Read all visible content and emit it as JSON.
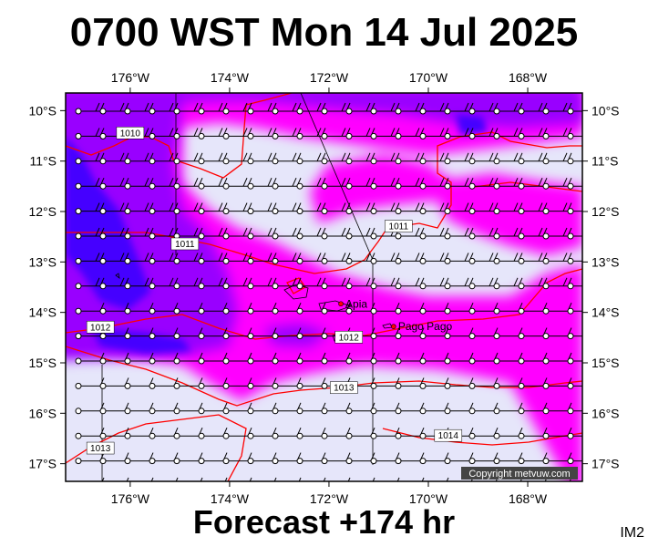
{
  "title": "0700 WST Mon 14 Jul 2025",
  "footer": "Forecast +174 hr",
  "corner_code": "IM2",
  "copyright": "Copyright metvuw.com",
  "axes": {
    "lon_ticks": [
      "176°W",
      "174°W",
      "172°W",
      "170°W",
      "168°W"
    ],
    "lat_ticks": [
      "10°S",
      "11°S",
      "12°S",
      "13°S",
      "14°S",
      "15°S",
      "16°S",
      "17°S"
    ]
  },
  "places": [
    {
      "name": "Apia",
      "lon": -171.76,
      "lat": -13.83
    },
    {
      "name": "Pago Pago",
      "lon": -170.7,
      "lat": -14.28
    }
  ],
  "isobar_labels": [
    {
      "text": "1010",
      "lon": -176.0,
      "lat": -10.45
    },
    {
      "text": "1011",
      "lon": -174.9,
      "lat": -12.65
    },
    {
      "text": "1011",
      "lon": -170.6,
      "lat": -12.3
    },
    {
      "text": "1012",
      "lon": -176.6,
      "lat": -14.3
    },
    {
      "text": "1012",
      "lon": -171.6,
      "lat": -14.5
    },
    {
      "text": "1013",
      "lon": -171.7,
      "lat": -15.5
    },
    {
      "text": "1013",
      "lon": -176.6,
      "lat": -16.7
    },
    {
      "text": "1014",
      "lon": -169.6,
      "lat": -16.45
    }
  ],
  "colors": {
    "calm": "#e6e6fa",
    "moderate": "#ff00ff",
    "strong": "#9900ff",
    "gale": "#4400ff",
    "isobar": "#ff0000"
  }
}
